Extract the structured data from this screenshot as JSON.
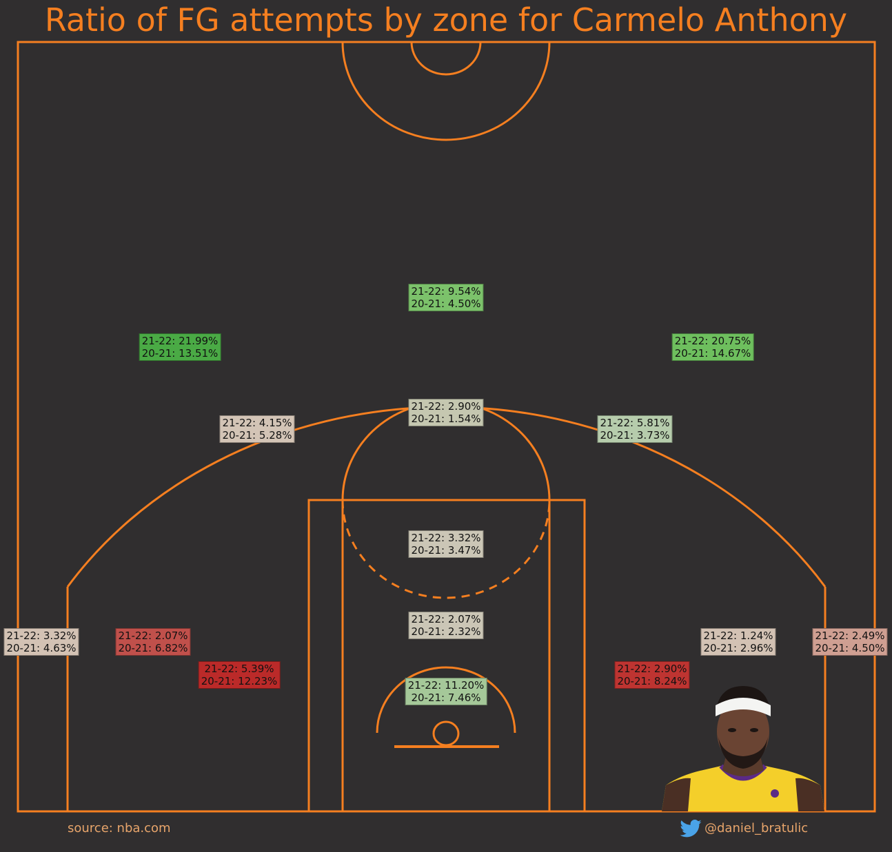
{
  "title": "Ratio of FG attempts by zone for Carmelo Anthony",
  "footer": {
    "source": "source: nba.com",
    "handle": "@daniel_bratulic",
    "twitter_icon": "twitter-bird-icon"
  },
  "colors": {
    "background": "#302e2f",
    "court_lines": "#f57f20",
    "title": "#f57f20",
    "footer_text": "#e8a56b"
  },
  "chart_data": {
    "type": "shot-zone-map",
    "title": "Ratio of FG attempts by zone for Carmelo Anthony",
    "series": [
      {
        "name": "21-22"
      },
      {
        "name": "20-21"
      }
    ],
    "zones": [
      {
        "id": "above-break-3-center",
        "line1": "21-22: 9.54%",
        "line2": "20-21: 4.50%",
        "v2122": 9.54,
        "v2021": 4.5,
        "color": "#7cc26b"
      },
      {
        "id": "above-break-3-left",
        "line1": "21-22: 21.99%",
        "line2": "20-21: 13.51%",
        "v2122": 21.99,
        "v2021": 13.51,
        "color": "#4aaa45"
      },
      {
        "id": "above-break-3-right",
        "line1": "21-22: 20.75%",
        "line2": "20-21: 14.67%",
        "v2122": 20.75,
        "v2021": 14.67,
        "color": "#6ebf5e"
      },
      {
        "id": "mid-range-top",
        "line1": "21-22: 2.90%",
        "line2": "20-21: 1.54%",
        "v2122": 2.9,
        "v2021": 1.54,
        "color": "#c5c7b0"
      },
      {
        "id": "mid-range-left-wing",
        "line1": "21-22: 4.15%",
        "line2": "20-21: 5.28%",
        "v2122": 4.15,
        "v2021": 5.28,
        "color": "#d3c4b6"
      },
      {
        "id": "mid-range-right-wing",
        "line1": "21-22: 5.81%",
        "line2": "20-21: 3.73%",
        "v2122": 5.81,
        "v2021": 3.73,
        "color": "#b6ccac"
      },
      {
        "id": "paint-upper",
        "line1": "21-22: 3.32%",
        "line2": "20-21: 3.47%",
        "v2122": 3.32,
        "v2021": 3.47,
        "color": "#cbc6b6"
      },
      {
        "id": "paint-lower",
        "line1": "21-22: 2.07%",
        "line2": "20-21: 2.32%",
        "v2122": 2.07,
        "v2021": 2.32,
        "color": "#cbc6b6"
      },
      {
        "id": "restricted-area",
        "line1": "21-22: 11.20%",
        "line2": "20-21: 7.46%",
        "v2122": 11.2,
        "v2021": 7.46,
        "color": "#a5c899"
      },
      {
        "id": "left-corner-3",
        "line1": "21-22: 3.32%",
        "line2": "20-21: 4.63%",
        "v2122": 3.32,
        "v2021": 4.63,
        "color": "#d3c2b4"
      },
      {
        "id": "left-baseline-mid",
        "line1": "21-22: 2.07%",
        "line2": "20-21: 6.82%",
        "v2122": 2.07,
        "v2021": 6.82,
        "color": "#c0504b"
      },
      {
        "id": "left-short-mid",
        "line1": "21-22: 5.39%",
        "line2": "20-21: 12.23%",
        "v2122": 5.39,
        "v2021": 12.23,
        "color": "#bb2a29"
      },
      {
        "id": "right-short-mid",
        "line1": "21-22: 2.90%",
        "line2": "20-21: 8.24%",
        "v2122": 2.9,
        "v2021": 8.24,
        "color": "#be3431"
      },
      {
        "id": "right-baseline-mid",
        "line1": "21-22: 1.24%",
        "line2": "20-21: 2.96%",
        "v2122": 1.24,
        "v2021": 2.96,
        "color": "#d3c2b4"
      },
      {
        "id": "right-corner-3",
        "line1": "21-22: 2.49%",
        "line2": "20-21: 4.50%",
        "v2122": 2.49,
        "v2021": 4.5,
        "color": "#cf9f92"
      }
    ]
  }
}
